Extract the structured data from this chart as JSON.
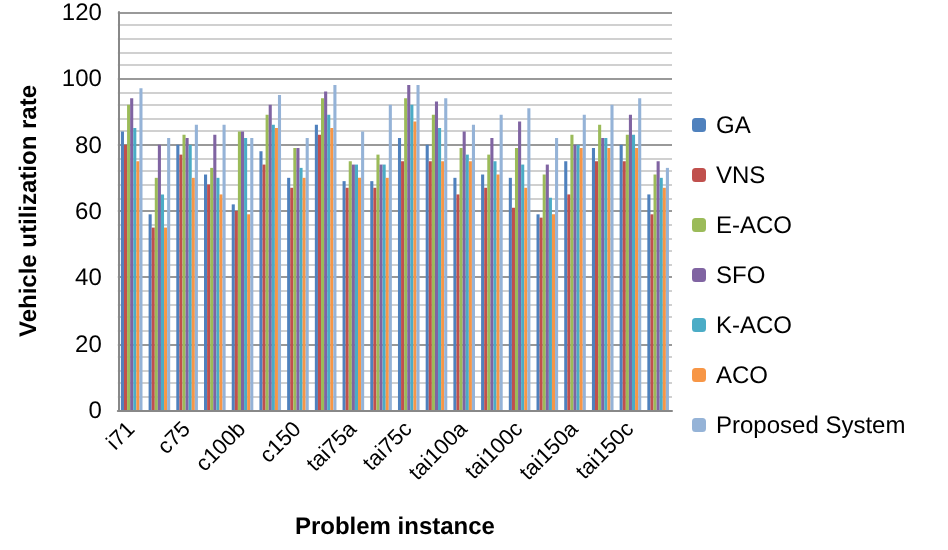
{
  "chart_data": {
    "type": "bar",
    "xlabel": "Problem instance",
    "ylabel": "Vehicle utilization rate",
    "categories": [
      "i71",
      null,
      "c75",
      null,
      "c100b",
      null,
      "c150",
      null,
      "tai75a",
      null,
      "tai75c",
      null,
      "tai100a",
      null,
      "tai100c",
      null,
      "tai150a",
      null,
      "tai150c",
      null
    ],
    "series": [
      {
        "name": "GA",
        "color": "#4f81bd",
        "values": [
          84,
          59,
          80,
          71,
          62,
          78,
          70,
          86,
          69,
          69,
          82,
          80,
          70,
          71,
          70,
          59,
          75,
          79,
          80,
          65
        ]
      },
      {
        "name": "VNS",
        "color": "#c0504d",
        "values": [
          80,
          55,
          77,
          68,
          60,
          74,
          67,
          83,
          67,
          67,
          75,
          75,
          65,
          67,
          61,
          58,
          65,
          75,
          75,
          59
        ]
      },
      {
        "name": "E-ACO",
        "color": "#9bbb59",
        "values": [
          92,
          70,
          83,
          73,
          84,
          89,
          79,
          94,
          75,
          77,
          94,
          89,
          79,
          77,
          79,
          71,
          83,
          86,
          83,
          71
        ]
      },
      {
        "name": "SFO",
        "color": "#8064a2",
        "values": [
          94,
          80,
          82,
          83,
          84,
          92,
          79,
          96,
          74,
          74,
          98,
          93,
          84,
          82,
          87,
          74,
          80,
          82,
          89,
          75
        ]
      },
      {
        "name": "K-ACO",
        "color": "#4bacc6",
        "values": [
          85,
          65,
          80,
          70,
          82,
          86,
          73,
          89,
          74,
          74,
          92,
          85,
          77,
          75,
          74,
          64,
          80,
          82,
          83,
          70
        ]
      },
      {
        "name": "ACO",
        "color": "#f79646",
        "values": [
          75,
          55,
          70,
          65,
          59,
          85,
          70,
          85,
          70,
          70,
          87,
          75,
          75,
          71,
          67,
          59,
          79,
          79,
          79,
          67
        ]
      },
      {
        "name": "Proposed System",
        "color": "#95b3d7",
        "values": [
          97,
          82,
          86,
          86,
          82,
          95,
          82,
          98,
          84,
          92,
          98,
          94,
          86,
          89,
          91,
          82,
          89,
          92,
          94,
          73
        ]
      }
    ],
    "ylim": [
      0,
      120
    ],
    "yticks": [
      0,
      20,
      40,
      60,
      80,
      100,
      120
    ],
    "grid": "y",
    "legend": "right"
  }
}
